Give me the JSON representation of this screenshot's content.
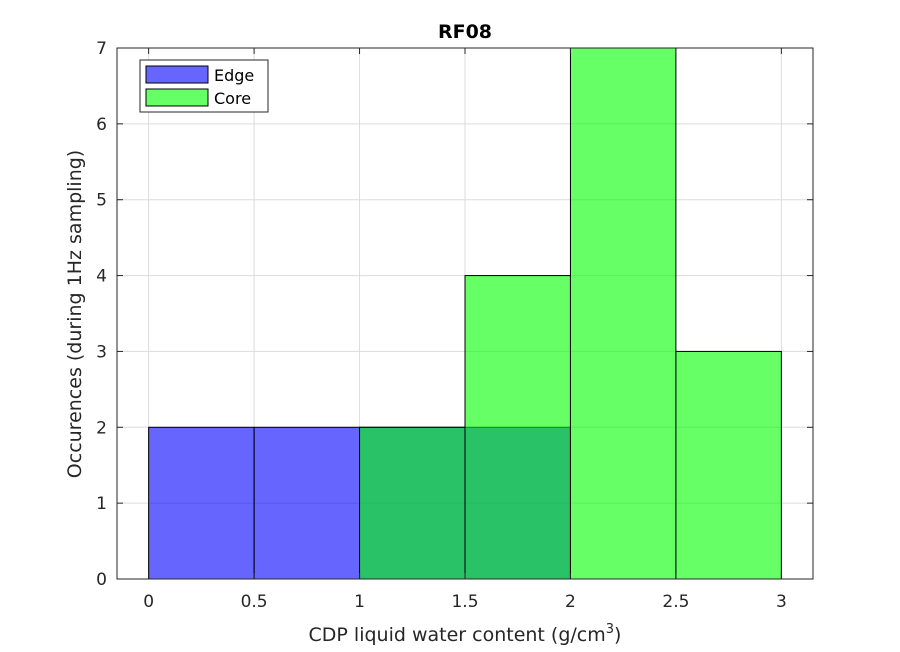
{
  "chart_data": {
    "type": "bar",
    "title": "RF08",
    "xlabel": "CDP liquid water content (g/cm",
    "xlabel_superscript": "3",
    "xlabel_close": ")",
    "ylabel": "Occurences (during 1Hz sampling)",
    "xlim": [
      -0.15,
      3.15
    ],
    "ylim": [
      0,
      7
    ],
    "xticks": [
      0,
      0.5,
      1,
      1.5,
      2,
      2.5,
      3
    ],
    "xtick_labels": [
      "0",
      "0.5",
      "1",
      "1.5",
      "2",
      "2.5",
      "3"
    ],
    "yticks": [
      0,
      1,
      2,
      3,
      4,
      5,
      6,
      7
    ],
    "ytick_labels": [
      "0",
      "1",
      "2",
      "3",
      "4",
      "5",
      "6",
      "7"
    ],
    "grid": true,
    "legend_position": "top-left",
    "bin_width": 0.5,
    "series": [
      {
        "name": "Edge",
        "color": "#0000ff",
        "opacity": 0.6,
        "bins": [
          {
            "x0": 0,
            "x1": 0.5,
            "value": 2
          },
          {
            "x0": 0.5,
            "x1": 1.0,
            "value": 2
          },
          {
            "x0": 1.0,
            "x1": 1.5,
            "value": 2
          },
          {
            "x0": 1.5,
            "x1": 2.0,
            "value": 2
          }
        ]
      },
      {
        "name": "Core",
        "color": "#00ff00",
        "opacity": 0.6,
        "bins": [
          {
            "x0": 1.0,
            "x1": 1.5,
            "value": 2
          },
          {
            "x0": 1.5,
            "x1": 2.0,
            "value": 4
          },
          {
            "x0": 2.0,
            "x1": 2.5,
            "value": 7
          },
          {
            "x0": 2.5,
            "x1": 3.0,
            "value": 3
          }
        ]
      }
    ]
  }
}
